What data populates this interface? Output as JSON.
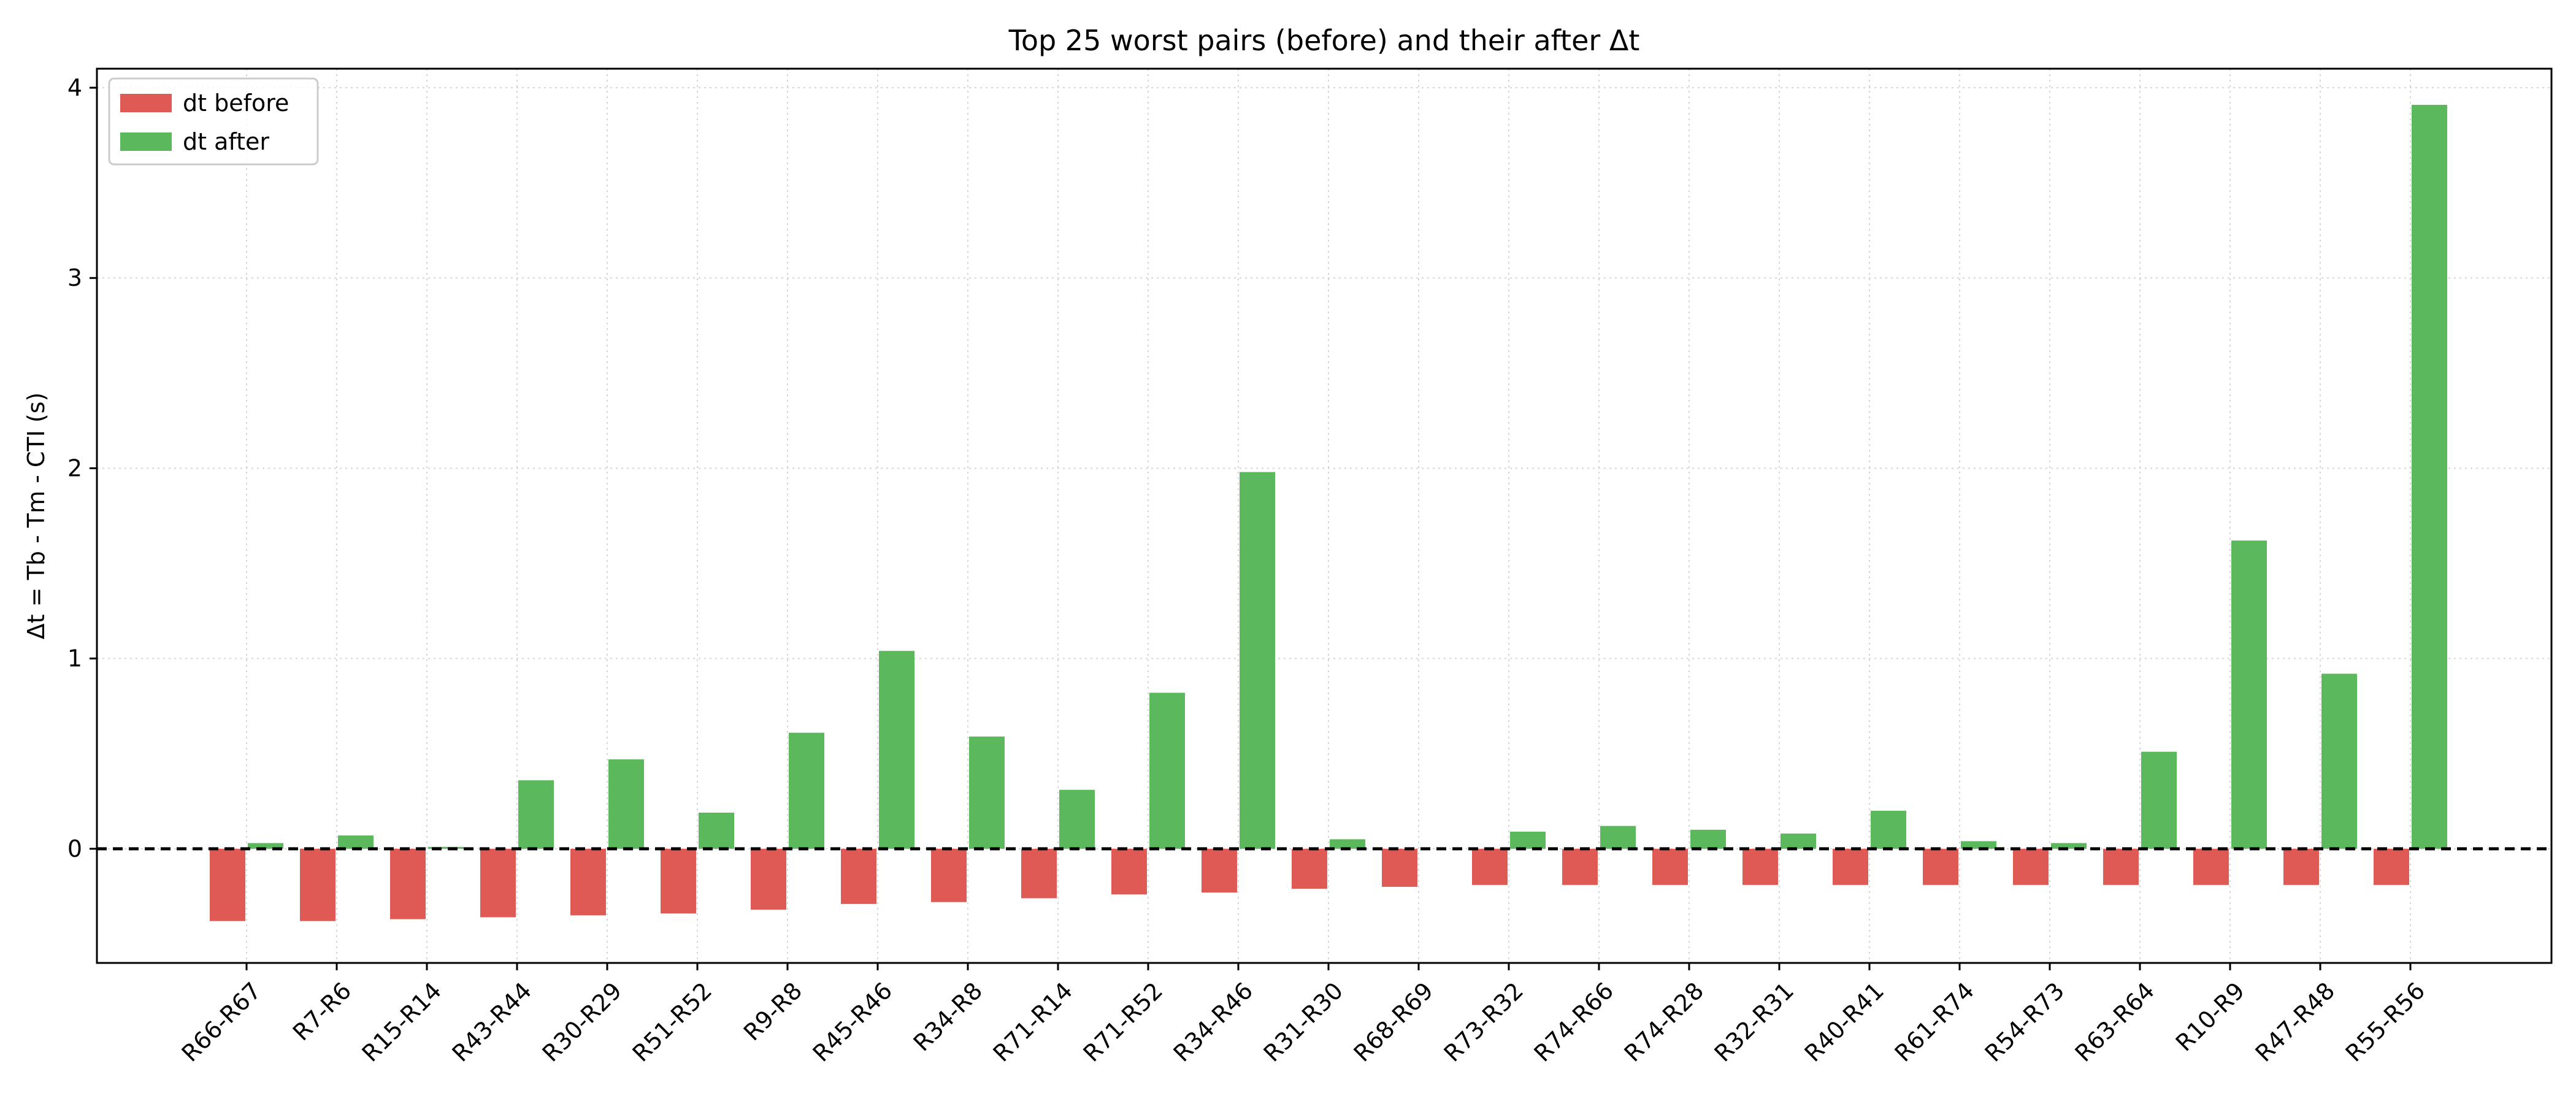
{
  "chart_data": {
    "type": "bar",
    "title": "Top 25 worst pairs (before) and their after Δt",
    "xlabel": "",
    "ylabel": "Δt = Tb - Tm - CTI (s)",
    "ylim": [
      -0.6,
      4.1
    ],
    "yticks": [
      0,
      1,
      2,
      3,
      4
    ],
    "grid": true,
    "legend_position": "top-left",
    "reference_line": {
      "y": 0,
      "style": "dashed",
      "color": "#000000"
    },
    "categories": [
      "R66-R67",
      "R7-R6",
      "R15-R14",
      "R43-R44",
      "R30-R29",
      "R51-R52",
      "R9-R8",
      "R45-R46",
      "R34-R8",
      "R71-R14",
      "R71-R52",
      "R34-R46",
      "R31-R30",
      "R68-R69",
      "R73-R32",
      "R74-R66",
      "R74-R28",
      "R32-R31",
      "R40-R41",
      "R61-R74",
      "R54-R73",
      "R63-R64",
      "R10-R9",
      "R47-R48",
      "R55-R56"
    ],
    "series": [
      {
        "name": "dt before",
        "color": "#e05a55",
        "values": [
          -0.38,
          -0.38,
          -0.37,
          -0.36,
          -0.35,
          -0.34,
          -0.32,
          -0.29,
          -0.28,
          -0.26,
          -0.24,
          -0.23,
          -0.21,
          -0.2,
          -0.19,
          -0.19,
          -0.19,
          -0.19,
          -0.19,
          -0.19,
          -0.19,
          -0.19,
          -0.19,
          -0.19,
          -0.19
        ]
      },
      {
        "name": "dt after",
        "color": "#5cb85c",
        "values": [
          0.03,
          0.07,
          0.01,
          0.36,
          0.47,
          0.19,
          0.61,
          1.04,
          0.59,
          0.31,
          0.82,
          1.98,
          0.05,
          0.0,
          0.09,
          0.12,
          0.1,
          0.08,
          0.2,
          0.04,
          0.03,
          0.51,
          1.62,
          0.92,
          3.91
        ]
      }
    ]
  }
}
